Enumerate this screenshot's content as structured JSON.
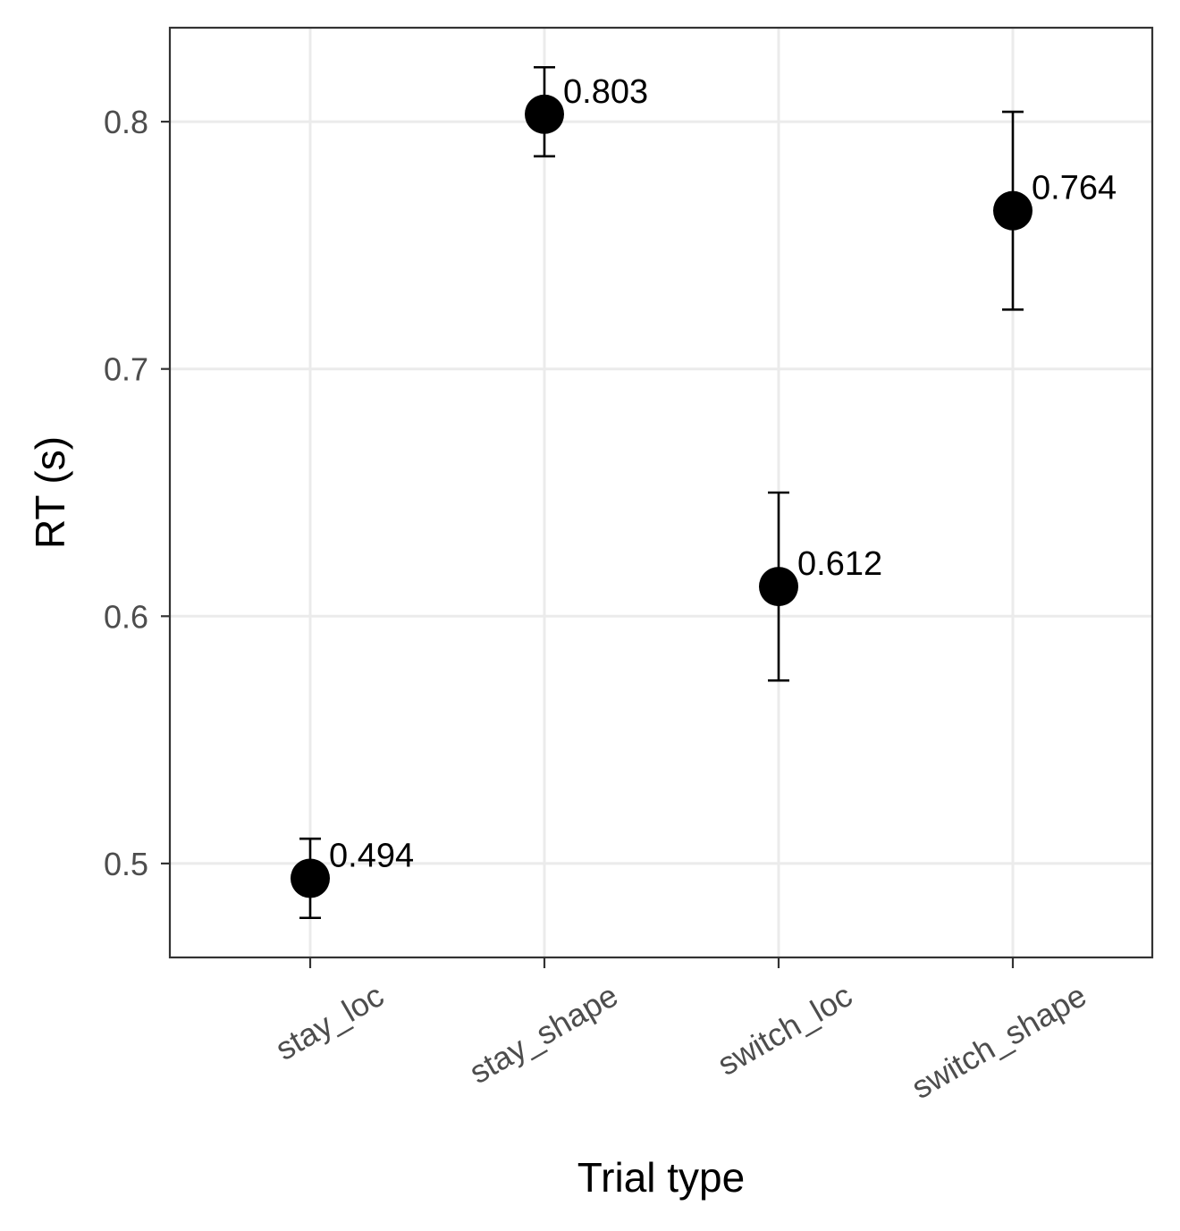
{
  "chart_data": {
    "type": "scatter",
    "xlabel": "Trial type",
    "ylabel": "RT (s)",
    "categories": [
      "stay_loc",
      "stay_shape",
      "switch_loc",
      "switch_shape"
    ],
    "series": [
      {
        "values": [
          0.494,
          0.803,
          0.612,
          0.764
        ],
        "error_low": [
          0.478,
          0.786,
          0.574,
          0.724
        ],
        "error_high": [
          0.51,
          0.822,
          0.65,
          0.804
        ],
        "labels": [
          "0.494",
          "0.803",
          "0.612",
          "0.764"
        ]
      }
    ],
    "ylim": [
      0.462,
      0.838
    ],
    "yticks": [
      0.5,
      0.6,
      0.7,
      0.8
    ],
    "ytick_labels": [
      "0.5",
      "0.6",
      "0.7",
      "0.8"
    ],
    "grid": true,
    "x_tick_rotation": "30 degrees",
    "colors": {
      "points": "#000000",
      "grid": "#ebebeb",
      "border": "#333333",
      "tick_text": "#4d4d4d"
    }
  }
}
